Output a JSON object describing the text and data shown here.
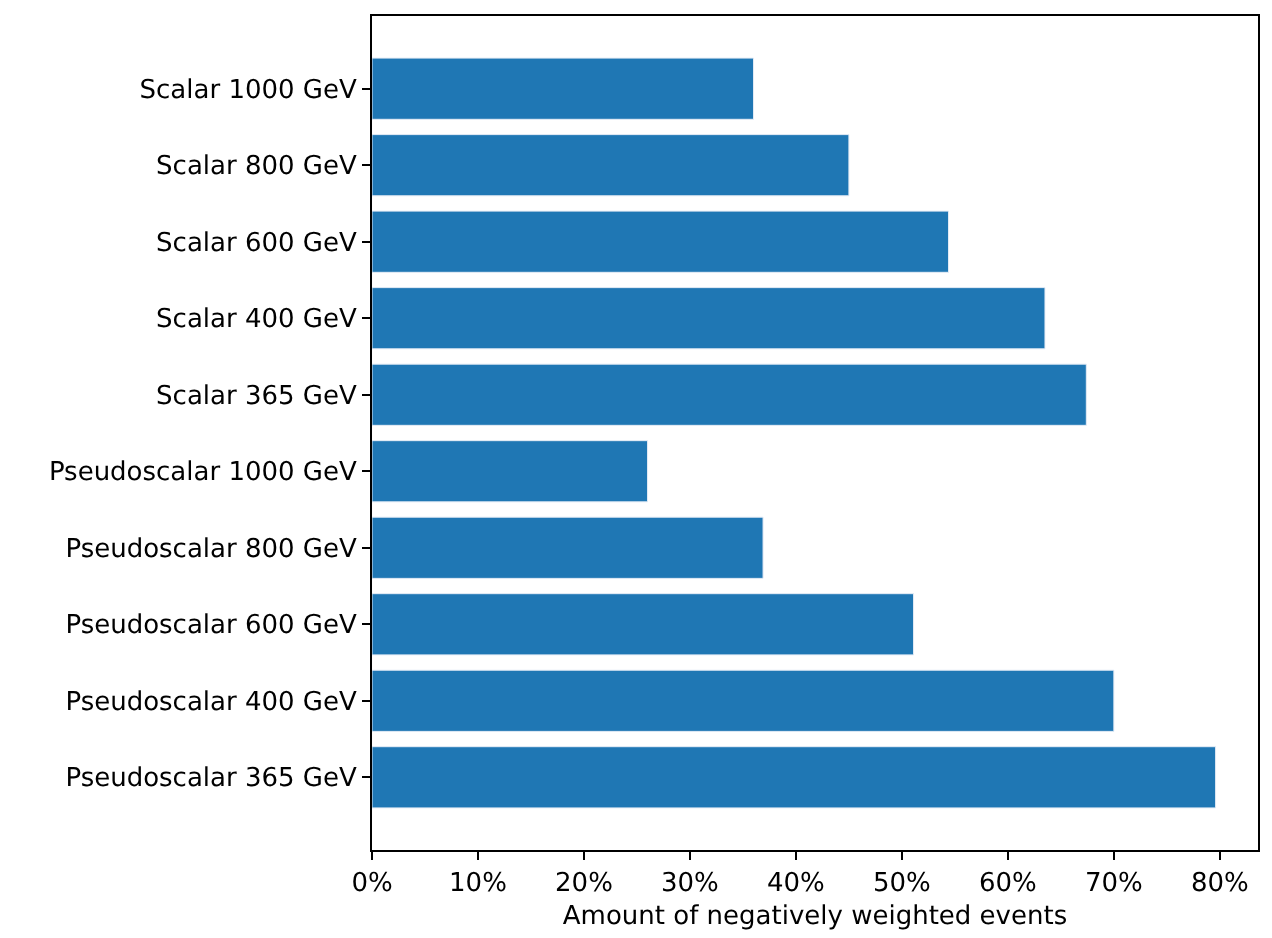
{
  "chart_data": {
    "type": "bar",
    "orientation": "horizontal",
    "xlabel": "Amount of negatively weighted events",
    "categories": [
      "Scalar 1000 GeV",
      "Scalar 800 GeV",
      "Scalar 600 GeV",
      "Scalar 400 GeV",
      "Scalar 365 GeV",
      "Pseudoscalar 1000 GeV",
      "Pseudoscalar 800 GeV",
      "Pseudoscalar 600 GeV",
      "Pseudoscalar 400 GeV",
      "Pseudoscalar 365 GeV"
    ],
    "values": [
      36,
      45,
      54.4,
      63.5,
      67.4,
      26,
      36.9,
      51.1,
      70,
      79.6
    ],
    "color": "#1f77b4",
    "xlim": [
      0,
      83.6
    ],
    "xticks": [
      {
        "value": 0,
        "label": "0%"
      },
      {
        "value": 10,
        "label": "10%"
      },
      {
        "value": 20,
        "label": "20%"
      },
      {
        "value": 30,
        "label": "30%"
      },
      {
        "value": 40,
        "label": "40%"
      },
      {
        "value": 50,
        "label": "50%"
      },
      {
        "value": 60,
        "label": "60%"
      },
      {
        "value": 70,
        "label": "70%"
      },
      {
        "value": 80,
        "label": "80%"
      }
    ]
  }
}
